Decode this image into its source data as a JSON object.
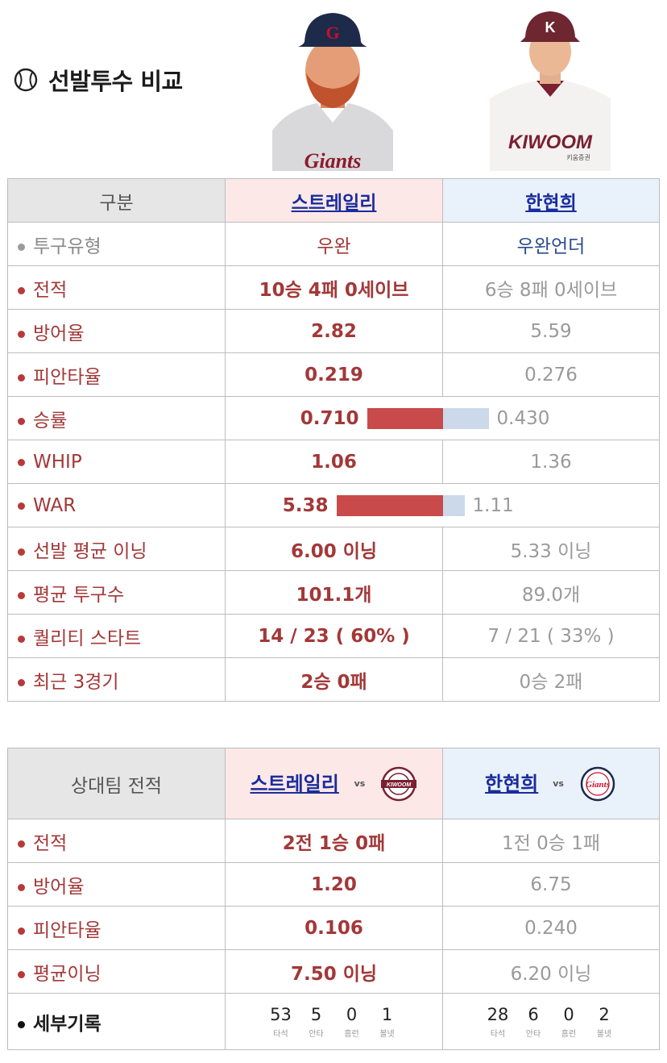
{
  "title": "선발투수 비교",
  "pitchers": {
    "a": {
      "name": "스트레일리",
      "team_logo": "Giants"
    },
    "b": {
      "name": "한현희",
      "team_logo": "KIWOOM",
      "team_sub": "키움증권"
    }
  },
  "table1": {
    "header_label": "구분",
    "rows": [
      {
        "label": "투구유형",
        "a": "우완",
        "b": "우완언더"
      },
      {
        "label": "전적",
        "a": "10승 4패 0세이브",
        "b": "6승 8패 0세이브"
      },
      {
        "label": "방어율",
        "a": "2.82",
        "b": "5.59"
      },
      {
        "label": "피안타율",
        "a": "0.219",
        "b": "0.276"
      },
      {
        "label": "승률",
        "a": "0.710",
        "b": "0.430"
      },
      {
        "label": "WHIP",
        "a": "1.06",
        "b": "1.36"
      },
      {
        "label": "WAR",
        "a": "5.38",
        "b": "1.11"
      },
      {
        "label": "선발 평균 이닝",
        "a": "6.00 이닝",
        "b": "5.33 이닝"
      },
      {
        "label": "평균 투구수",
        "a": "101.1개",
        "b": "89.0개"
      },
      {
        "label": "퀄리티 스타트",
        "a": "14 / 23 ( 60% )",
        "b": "7 / 21 ( 33% )"
      },
      {
        "label": "최근 3경기",
        "a": "2승 0패",
        "b": "0승 2패"
      }
    ],
    "bars": {
      "win_rate": {
        "a": 0.71,
        "b": 0.43
      },
      "war": {
        "a": 5.38,
        "b": 1.11
      }
    }
  },
  "table2": {
    "header_label": "상대팀 전적",
    "vs": "vs",
    "a_opponent_logo": "KIWOOM",
    "b_opponent_logo": "Giants",
    "rows": [
      {
        "label": "전적",
        "a": "2전 1승 0패",
        "b": "1전 0승 1패"
      },
      {
        "label": "방어율",
        "a": "1.20",
        "b": "6.75"
      },
      {
        "label": "피안타율",
        "a": "0.106",
        "b": "0.240"
      },
      {
        "label": "평균이닝",
        "a": "7.50 이닝",
        "b": "6.20 이닝"
      }
    ],
    "detail_label": "세부기록",
    "detail_keys": [
      "타석",
      "안타",
      "홈런",
      "볼넷"
    ],
    "detail_a": [
      "53",
      "5",
      "0",
      "1"
    ],
    "detail_b": [
      "28",
      "6",
      "0",
      "2"
    ]
  },
  "colors": {
    "accent_red": "#a33838",
    "bar_red": "#c94a4a",
    "bar_blue": "#cbd9ea",
    "link": "#1a2c9c"
  }
}
